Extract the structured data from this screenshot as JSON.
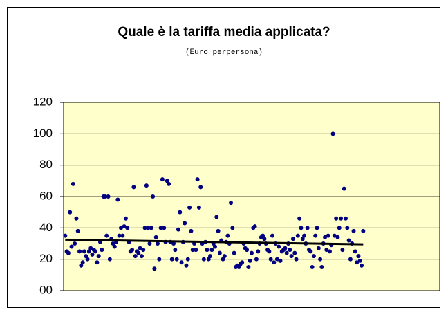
{
  "chart_data": {
    "type": "scatter",
    "title": "Quale è la tariffa media applicata?",
    "subtitle": "(Euro perpersona)",
    "color": "#000080",
    "plot_background": "#ffffcc",
    "grid": true,
    "xlim": [
      0,
      236
    ],
    "ylim": [
      0,
      120
    ],
    "yticks": [
      {
        "value": 0,
        "label": "00"
      },
      20,
      40,
      60,
      80,
      100,
      120
    ],
    "x": [
      1,
      2,
      3,
      4,
      5,
      6,
      7,
      8,
      9,
      10,
      11,
      12,
      13,
      14,
      15,
      16,
      17,
      18,
      19,
      20,
      21,
      22,
      23,
      24,
      25,
      26,
      27,
      28,
      29,
      30,
      31,
      32,
      33,
      34,
      35,
      36,
      37,
      38,
      39,
      40,
      41,
      42,
      43,
      44,
      45,
      46,
      47,
      48,
      49,
      50,
      51,
      52,
      53,
      54,
      55,
      56,
      57,
      58,
      59,
      60,
      61,
      62,
      63,
      64,
      65,
      66,
      67,
      68,
      69,
      70,
      71,
      72,
      73,
      74,
      75,
      76,
      77,
      78,
      79,
      80,
      81,
      82,
      83,
      84,
      85,
      86,
      87,
      88,
      89,
      90,
      91,
      92,
      93,
      94,
      95,
      96,
      97,
      98,
      99,
      100,
      101,
      102,
      103,
      104,
      105,
      106,
      107,
      108,
      109,
      110,
      111,
      112,
      113,
      114,
      115,
      116,
      117,
      118,
      119,
      120,
      121,
      122,
      123,
      124,
      125,
      126,
      127,
      128,
      129,
      130,
      131,
      132,
      133,
      134,
      135,
      136,
      137,
      138,
      139,
      140,
      141,
      142,
      143,
      144,
      145,
      146,
      147,
      148,
      149,
      150,
      151,
      152,
      153,
      154,
      155,
      156,
      157,
      158,
      159,
      160,
      161,
      162,
      163,
      164,
      165,
      166,
      167,
      168,
      169,
      170,
      171,
      172,
      173,
      174,
      175,
      176,
      177,
      178,
      179,
      180,
      181,
      182,
      183,
      184,
      185,
      186,
      187,
      188
    ],
    "values": [
      35,
      25,
      24,
      50,
      28,
      68,
      30,
      46,
      38,
      25,
      16,
      18,
      25,
      22,
      20,
      25,
      27,
      23,
      26,
      25,
      18,
      22,
      31,
      26,
      60,
      60,
      35,
      60,
      20,
      33,
      30,
      28,
      31,
      58,
      35,
      40,
      35,
      41,
      46,
      40,
      31,
      25,
      26,
      66,
      22,
      25,
      24,
      27,
      22,
      26,
      40,
      67,
      40,
      30,
      40,
      60,
      14,
      34,
      30,
      20,
      40,
      71,
      40,
      31,
      70,
      68,
      31,
      20,
      30,
      26,
      20,
      39,
      50,
      18,
      31,
      43,
      16,
      20,
      53,
      38,
      26,
      30,
      26,
      71,
      53,
      66,
      30,
      20,
      31,
      26,
      20,
      22,
      26,
      30,
      28,
      47,
      38,
      24,
      32,
      20,
      22,
      31,
      35,
      30,
      56,
      40,
      24,
      15,
      16,
      15,
      17,
      18,
      30,
      27,
      26,
      15,
      19,
      24,
      40,
      41,
      20,
      25,
      30,
      34,
      35,
      33,
      30,
      26,
      25,
      20,
      35,
      18,
      30,
      20,
      28,
      19,
      25,
      26,
      27,
      24,
      30,
      26,
      22,
      33,
      24,
      20,
      35,
      46,
      40,
      33,
      35,
      30,
      40,
      26,
      25,
      15,
      22,
      35,
      40,
      27,
      20,
      15,
      30,
      34,
      26,
      35,
      25,
      29,
      100,
      35,
      46,
      34,
      40,
      46,
      26,
      65,
      46,
      40,
      32,
      20,
      30,
      38,
      25,
      18,
      22,
      19,
      16,
      38
    ],
    "trendline": {
      "x": [
        1,
        188
      ],
      "values": [
        32.5,
        29.5
      ],
      "color": "#000000"
    }
  }
}
